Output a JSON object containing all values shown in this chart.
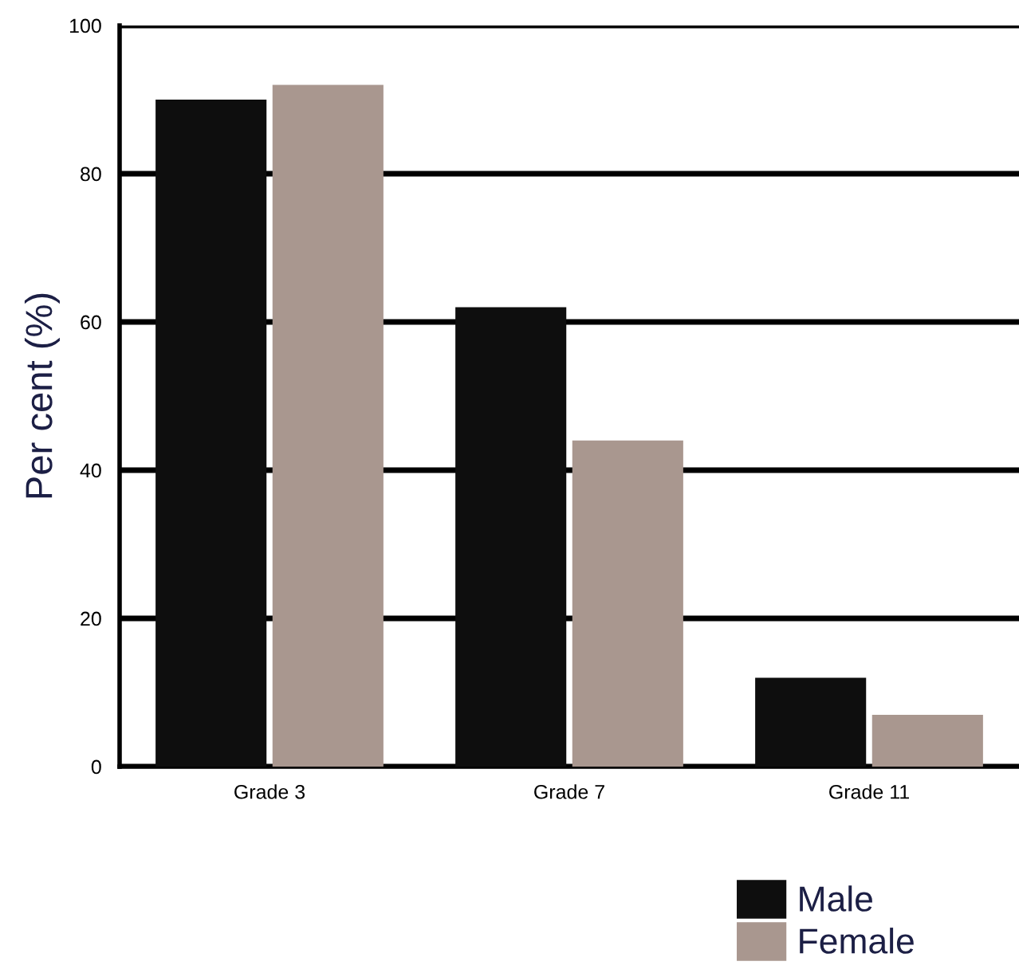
{
  "chart_data": {
    "type": "bar",
    "ylabel": "Per cent (%)",
    "categories": [
      "Grade 3",
      "Grade 7",
      "Grade 11"
    ],
    "series": [
      {
        "name": "Male",
        "color": "#0e0e0e",
        "values": [
          90,
          62,
          12
        ]
      },
      {
        "name": "Female",
        "color": "#a9978f",
        "values": [
          92,
          44,
          7
        ]
      }
    ],
    "ylim": [
      0,
      100
    ],
    "yticks": [
      0,
      20,
      40,
      60,
      80,
      100
    ],
    "grid": "y",
    "legend": "bottom right"
  }
}
